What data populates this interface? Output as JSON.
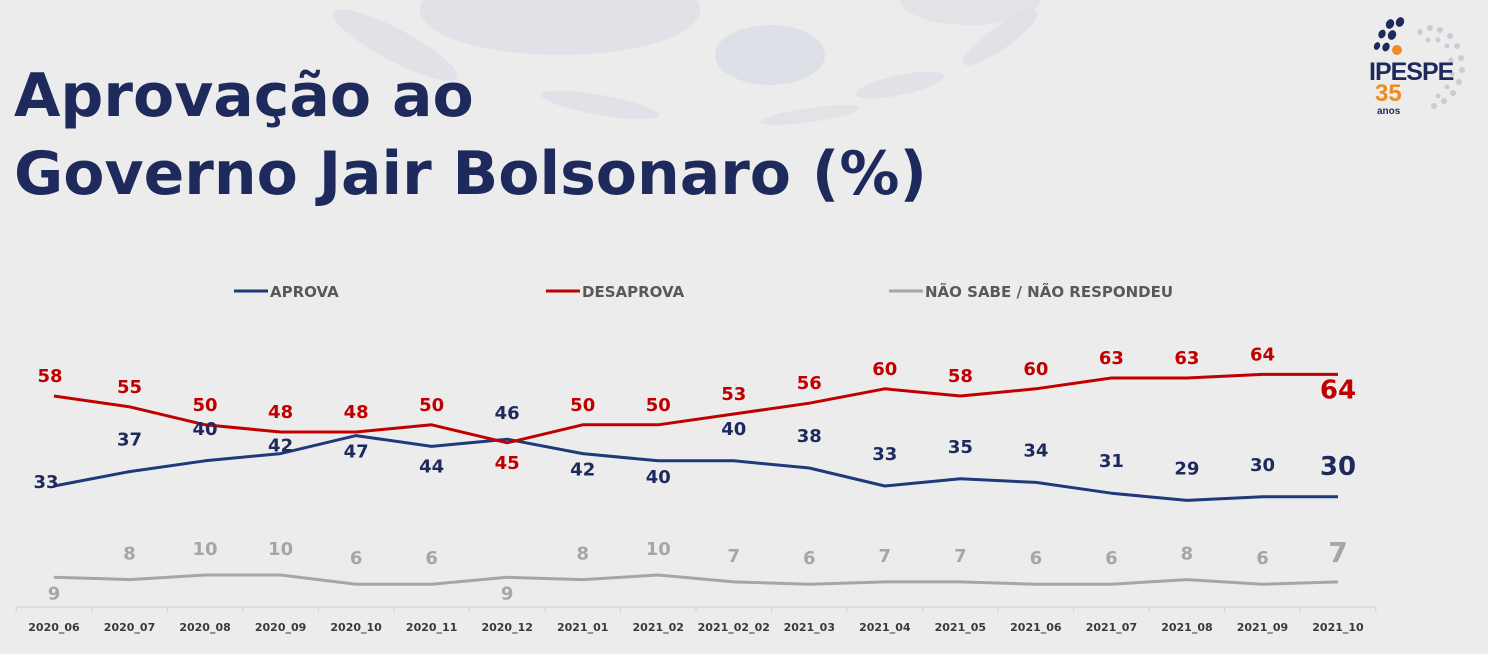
{
  "header": {
    "title_line1": "Aprovação ao",
    "title_line2": "Governo Jair Bolsonaro (%)"
  },
  "logo": {
    "name": "IPESPE",
    "years": "35",
    "years_label": "anos"
  },
  "chart_data": {
    "type": "line",
    "title": "Aprovação ao Governo Jair Bolsonaro (%)",
    "x": [
      "2020_06",
      "2020_07",
      "2020_08",
      "2020_09",
      "2020_10",
      "2020_11",
      "2020_12",
      "2021_01",
      "2021_02",
      "2021_02_02",
      "2021_03",
      "2021_04",
      "2021_05",
      "2021_06",
      "2021_07",
      "2021_08",
      "2021_09",
      "2021_10"
    ],
    "series": [
      {
        "name": "APROVA",
        "color": "#1f3a7a",
        "label_color": "#1f2a5c",
        "values": [
          33,
          37,
          40,
          42,
          47,
          44,
          46,
          42,
          40,
          40,
          38,
          33,
          35,
          34,
          31,
          29,
          30,
          30
        ]
      },
      {
        "name": "DESAPROVA",
        "color": "#c00000",
        "label_color": "#c00000",
        "values": [
          58,
          55,
          50,
          48,
          48,
          50,
          45,
          50,
          50,
          53,
          56,
          60,
          58,
          60,
          63,
          63,
          64,
          64
        ]
      },
      {
        "name": "NÃO SABE / NÃO RESPONDEU",
        "color": "#a6a6a6",
        "label_color": "#a6a6a6",
        "values": [
          9,
          8,
          10,
          10,
          6,
          6,
          9,
          8,
          10,
          7,
          6,
          7,
          7,
          6,
          6,
          8,
          6,
          7
        ]
      }
    ],
    "legend_position": "top",
    "grid": false,
    "ylim": [
      0,
      70
    ],
    "xlabel": "",
    "ylabel": ""
  }
}
